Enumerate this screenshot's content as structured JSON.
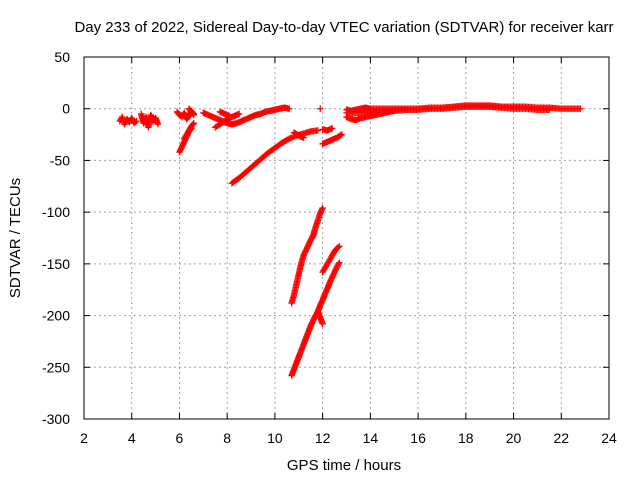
{
  "chart_data": {
    "type": "scatter",
    "title": "Day 233 of 2022, Sidereal Day-to-day VTEC variation (SDTVAR) for receiver karr",
    "xlabel": "GPS time / hours",
    "ylabel": "SDTVAR / TECUs",
    "xlim": [
      2,
      24
    ],
    "ylim": [
      -300,
      50
    ],
    "xticks": [
      2,
      4,
      6,
      8,
      10,
      12,
      14,
      16,
      18,
      20,
      22,
      24
    ],
    "yticks": [
      50,
      0,
      -50,
      -100,
      -150,
      -200,
      -250,
      -300
    ],
    "grid": true,
    "marker": "plus",
    "color": "#ff0000",
    "series": [
      {
        "name": "SDTVAR",
        "segments": [
          [
            [
              3.5,
              -12
            ],
            [
              3.6,
              -8
            ],
            [
              3.7,
              -15
            ],
            [
              3.8,
              -10
            ],
            [
              3.9,
              -13
            ],
            [
              4.0,
              -9
            ],
            [
              4.1,
              -14
            ],
            [
              4.2,
              -12
            ]
          ],
          [
            [
              4.4,
              -5
            ],
            [
              4.5,
              -14
            ],
            [
              4.6,
              -8
            ],
            [
              4.7,
              -18
            ],
            [
              4.8,
              -6
            ],
            [
              4.9,
              -12
            ],
            [
              5.0,
              -9
            ],
            [
              5.1,
              -15
            ]
          ],
          [
            [
              5.9,
              -3
            ],
            [
              6.0,
              -6
            ],
            [
              6.1,
              -8
            ],
            [
              6.2,
              -4
            ],
            [
              6.3,
              -10
            ],
            [
              6.4,
              -7
            ],
            [
              6.5,
              -2
            ],
            [
              6.6,
              -6
            ]
          ],
          [
            [
              6.0,
              -42
            ],
            [
              6.1,
              -37
            ],
            [
              6.2,
              -32
            ],
            [
              6.3,
              -27
            ],
            [
              6.4,
              -22
            ],
            [
              6.5,
              -19
            ]
          ],
          [
            [
              6.2,
              -29
            ],
            [
              6.3,
              -25
            ],
            [
              6.4,
              -21
            ],
            [
              6.5,
              -17
            ],
            [
              6.6,
              -14
            ]
          ],
          [
            [
              6.4,
              0
            ],
            [
              6.5,
              -3
            ],
            [
              6.6,
              -5
            ]
          ],
          [
            [
              7.0,
              -4
            ],
            [
              7.2,
              -6
            ],
            [
              7.4,
              -8
            ],
            [
              7.6,
              -10
            ],
            [
              7.8,
              -12
            ],
            [
              8.0,
              -14
            ],
            [
              8.2,
              -15
            ],
            [
              8.4,
              -14
            ],
            [
              8.6,
              -12
            ],
            [
              8.8,
              -10
            ],
            [
              9.0,
              -8
            ],
            [
              9.2,
              -6
            ],
            [
              9.4,
              -5
            ],
            [
              9.6,
              -3
            ],
            [
              9.8,
              -2
            ],
            [
              10.0,
              -1
            ],
            [
              10.2,
              0
            ],
            [
              10.4,
              1
            ],
            [
              10.6,
              0
            ]
          ],
          [
            [
              7.5,
              -18
            ],
            [
              7.7,
              -15
            ],
            [
              7.9,
              -12
            ],
            [
              8.1,
              -9
            ],
            [
              8.3,
              -7
            ],
            [
              8.5,
              -5
            ]
          ],
          [
            [
              7.7,
              -3
            ],
            [
              7.9,
              -5
            ],
            [
              8.1,
              -7
            ]
          ],
          [
            [
              8.2,
              -72
            ],
            [
              8.5,
              -67
            ],
            [
              8.8,
              -61
            ],
            [
              9.1,
              -55
            ],
            [
              9.4,
              -49
            ],
            [
              9.7,
              -43
            ],
            [
              10.0,
              -38
            ],
            [
              10.3,
              -33
            ],
            [
              10.6,
              -29
            ],
            [
              10.9,
              -26
            ],
            [
              11.2,
              -24
            ],
            [
              11.5,
              -22
            ],
            [
              11.8,
              -21
            ]
          ],
          [
            [
              10.8,
              -23
            ],
            [
              11.0,
              -26
            ],
            [
              11.2,
              -28
            ]
          ],
          [
            [
              12.0,
              -34
            ],
            [
              12.2,
              -32
            ],
            [
              12.4,
              -30
            ],
            [
              12.6,
              -28
            ],
            [
              12.8,
              -25
            ]
          ],
          [
            [
              12.0,
              -20
            ],
            [
              12.2,
              -21
            ],
            [
              12.4,
              -19
            ]
          ],
          [
            [
              11.9,
              0
            ]
          ],
          [
            [
              10.7,
              -188
            ],
            [
              10.8,
              -180
            ],
            [
              10.9,
              -170
            ],
            [
              11.0,
              -160
            ],
            [
              11.1,
              -150
            ],
            [
              11.2,
              -142
            ],
            [
              11.3,
              -137
            ],
            [
              11.4,
              -132
            ],
            [
              11.5,
              -127
            ],
            [
              11.6,
              -123
            ]
          ],
          [
            [
              11.6,
              -123
            ],
            [
              11.7,
              -115
            ],
            [
              11.8,
              -108
            ],
            [
              11.9,
              -101
            ],
            [
              12.0,
              -96
            ]
          ],
          [
            [
              10.7,
              -258
            ],
            [
              10.8,
              -252
            ],
            [
              10.9,
              -246
            ],
            [
              11.0,
              -240
            ],
            [
              11.1,
              -234
            ],
            [
              11.2,
              -228
            ],
            [
              11.3,
              -222
            ],
            [
              11.4,
              -216
            ],
            [
              11.5,
              -210
            ],
            [
              11.6,
              -205
            ],
            [
              11.7,
              -200
            ],
            [
              11.8,
              -196
            ],
            [
              11.9,
              -202
            ],
            [
              12.0,
              -208
            ]
          ],
          [
            [
              11.8,
              -196
            ],
            [
              11.9,
              -190
            ],
            [
              12.0,
              -185
            ],
            [
              12.1,
              -179
            ],
            [
              12.2,
              -174
            ],
            [
              12.3,
              -168
            ],
            [
              12.4,
              -163
            ],
            [
              12.5,
              -158
            ],
            [
              12.6,
              -153
            ],
            [
              12.7,
              -149
            ]
          ],
          [
            [
              12.0,
              -158
            ],
            [
              12.1,
              -154
            ],
            [
              12.2,
              -150
            ],
            [
              12.3,
              -146
            ],
            [
              12.4,
              -142
            ],
            [
              12.5,
              -138
            ],
            [
              12.6,
              -135
            ],
            [
              12.7,
              -133
            ]
          ],
          [
            [
              13.0,
              -8
            ],
            [
              13.2,
              -10
            ],
            [
              13.4,
              -11
            ],
            [
              13.6,
              -9
            ],
            [
              13.8,
              -8
            ],
            [
              14.0,
              -7
            ],
            [
              14.2,
              -6
            ],
            [
              14.4,
              -5
            ],
            [
              14.6,
              -4
            ],
            [
              14.8,
              -3
            ],
            [
              15.0,
              -2
            ]
          ],
          [
            [
              13.0,
              -1
            ],
            [
              13.2,
              -2
            ],
            [
              13.4,
              -1
            ],
            [
              13.6,
              0
            ],
            [
              13.8,
              1
            ],
            [
              14.0,
              0
            ],
            [
              14.5,
              0
            ],
            [
              15.0,
              0
            ],
            [
              15.5,
              0
            ],
            [
              16.0,
              0
            ],
            [
              16.5,
              1
            ],
            [
              17.0,
              1
            ],
            [
              17.5,
              2
            ],
            [
              18.0,
              3
            ],
            [
              18.5,
              3
            ],
            [
              19.0,
              3
            ],
            [
              19.5,
              2
            ],
            [
              20.0,
              2
            ],
            [
              20.5,
              2
            ],
            [
              21.0,
              1
            ],
            [
              21.5,
              1
            ],
            [
              22.0,
              0
            ],
            [
              22.5,
              0
            ],
            [
              22.8,
              0
            ]
          ],
          [
            [
              13.0,
              -4
            ],
            [
              13.5,
              -4
            ],
            [
              14.0,
              -3
            ],
            [
              14.5,
              -2
            ],
            [
              15.0,
              -2
            ],
            [
              15.5,
              -1
            ],
            [
              16.0,
              -1
            ],
            [
              16.5,
              0
            ],
            [
              17.0,
              0
            ],
            [
              17.5,
              1
            ],
            [
              18.0,
              2
            ],
            [
              18.5,
              2
            ],
            [
              19.0,
              2
            ],
            [
              19.5,
              1
            ],
            [
              20.0,
              0
            ],
            [
              20.5,
              0
            ],
            [
              21.0,
              -1
            ],
            [
              21.5,
              -1
            ]
          ]
        ]
      }
    ]
  }
}
